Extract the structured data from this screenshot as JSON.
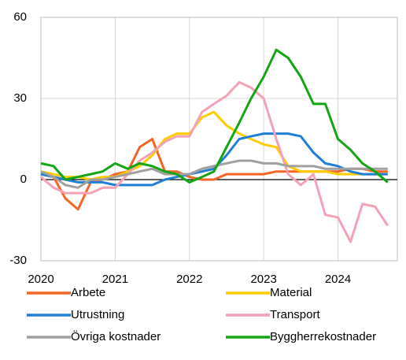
{
  "chart_data": {
    "type": "line",
    "x": [
      2020,
      2020.17,
      2020.33,
      2020.5,
      2020.67,
      2020.83,
      2021,
      2021.17,
      2021.33,
      2021.5,
      2021.67,
      2021.83,
      2022,
      2022.17,
      2022.33,
      2022.5,
      2022.67,
      2022.83,
      2023,
      2023.17,
      2023.33,
      2023.5,
      2023.67,
      2023.83,
      2024,
      2024.17,
      2024.33,
      2024.5,
      2024.67
    ],
    "xlim": [
      2020,
      2024.8
    ],
    "xticks": [
      2020,
      2021,
      2022,
      2023,
      2024
    ],
    "ylim": [
      -30,
      60
    ],
    "yticks": [
      -30,
      0,
      30,
      60
    ],
    "grid": true,
    "legend": "bottom",
    "series": [
      {
        "name": "Arbete",
        "color": "#f26522",
        "values": [
          2,
          1,
          -7,
          -11,
          -1,
          0,
          2,
          3,
          12,
          15,
          3,
          3,
          1,
          0,
          0,
          2,
          2,
          2,
          2,
          3,
          3,
          3,
          3,
          3,
          3,
          4,
          4,
          3,
          3
        ]
      },
      {
        "name": "Material",
        "color": "#ffcc00",
        "values": [
          3,
          2,
          1,
          1,
          0,
          1,
          1,
          3,
          5,
          9,
          15,
          17,
          17,
          23,
          25,
          20,
          17,
          15,
          13,
          12,
          5,
          3,
          3,
          3,
          2,
          2,
          2,
          2,
          2
        ]
      },
      {
        "name": "Utrustning",
        "color": "#1f7fd6",
        "values": [
          2,
          1,
          0,
          -1,
          -1,
          -1,
          -2,
          -2,
          -2,
          -2,
          0,
          1,
          2,
          3,
          4,
          9,
          15,
          16,
          17,
          17,
          17,
          16,
          10,
          6,
          5,
          3,
          2,
          2,
          2
        ]
      },
      {
        "name": "Transport",
        "color": "#f4a1b5",
        "values": [
          1,
          -3,
          -5,
          -5,
          -5,
          -3,
          -3,
          2,
          7,
          10,
          14,
          16,
          16,
          25,
          28,
          31,
          36,
          34,
          30,
          15,
          2,
          -2,
          2,
          -13,
          -14,
          -23,
          -9,
          -10,
          -17
        ]
      },
      {
        "name": "Övriga kostnader",
        "color": "#a0a0a0",
        "values": [
          3,
          1,
          -2,
          -3,
          0,
          0,
          1,
          2,
          3,
          4,
          2,
          2,
          2,
          4,
          5,
          6,
          7,
          7,
          6,
          6,
          5,
          5,
          5,
          4,
          4,
          4,
          4,
          4,
          4
        ]
      },
      {
        "name": "Byggherrekostnader",
        "color": "#13a513",
        "values": [
          6,
          5,
          0,
          1,
          2,
          3,
          6,
          4,
          6,
          5,
          3,
          2,
          -1,
          1,
          3,
          12,
          21,
          30,
          38,
          48,
          45,
          38,
          28,
          28,
          15,
          11,
          6,
          3,
          -1
        ]
      }
    ]
  }
}
